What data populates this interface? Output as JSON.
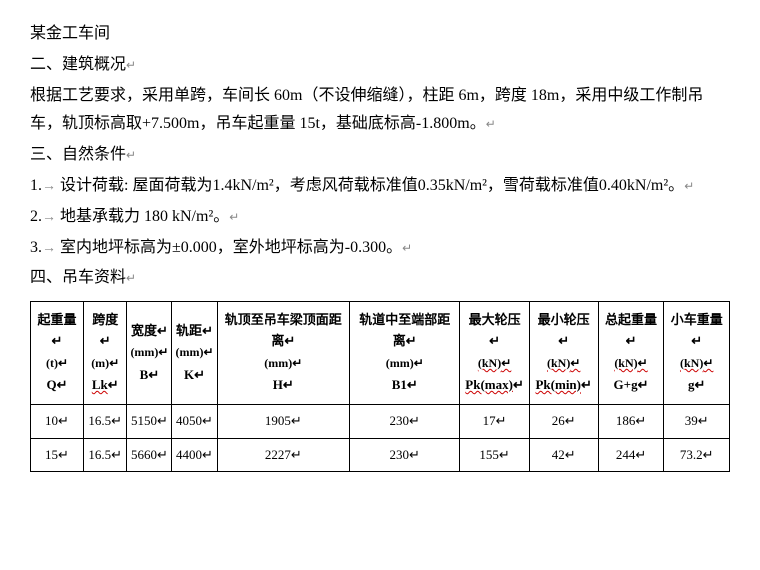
{
  "title": "某金工车间",
  "section2_title": "二、建筑概况",
  "section2_body": "根据工艺要求，采用单跨，车间长 60m（不设伸缩缝），柱距 6m，跨度 18m，采用中级工作制吊车，轨顶标高取+7.500m，吊车起重量 15t，基础底标高-1.800m。",
  "section3_title": "三、自然条件",
  "section3_item1_prefix": "1.",
  "section3_item1": "设计荷载: 屋面荷载为1.4kN/m²，考虑风荷载标准值0.35kN/m²，雪荷载标准值0.40kN/m²。",
  "section3_item2_prefix": "2.",
  "section3_item2": "地基承载力 180 kN/m²。",
  "section3_item3_prefix": "3.",
  "section3_item3": "室内地坪标高为±0.000，室外地坪标高为-0.300。",
  "section4_title": "四、吊车资料",
  "table": {
    "columns": [
      {
        "label": "起重量",
        "unit": "(t)",
        "sym": "Q"
      },
      {
        "label": "跨度",
        "unit": "(m)",
        "sym": "Lk"
      },
      {
        "label": "宽度",
        "unit": "(mm)",
        "sym": "B"
      },
      {
        "label": "轨距",
        "unit": "(mm)",
        "sym": "K"
      },
      {
        "label": "轨顶至吊车梁顶面距离",
        "unit": "(mm)",
        "sym": "H"
      },
      {
        "label": "轨道中至端部距离",
        "unit": "(mm)",
        "sym": "B1"
      },
      {
        "label": "最大轮压",
        "unit": "(kN)",
        "sym": "Pk(max)"
      },
      {
        "label": "最小轮压",
        "unit": "(kN)",
        "sym": "Pk(min)"
      },
      {
        "label": "总起重量",
        "unit": "(kN)",
        "sym": "G+g"
      },
      {
        "label": "小车重量",
        "unit": "(kN)",
        "sym": "g"
      }
    ],
    "rows": [
      [
        "10",
        "16.5",
        "5150",
        "4050",
        "1905",
        "230",
        "17",
        "26",
        "186",
        "39"
      ],
      [
        "15",
        "16.5",
        "5660",
        "4400",
        "2227",
        "230",
        "155",
        "42",
        "244",
        "73.2"
      ]
    ],
    "wavy_unit_cols": [
      6,
      7,
      8,
      9
    ],
    "wavy_sym_cols": [
      1,
      6,
      7
    ]
  },
  "return_mark": "↵",
  "arrow": "→"
}
